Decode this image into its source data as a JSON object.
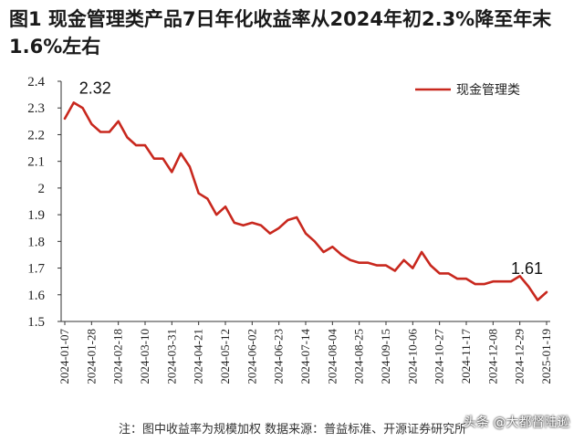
{
  "title": "图1  现金管理类产品7日年化收益率从2024年初2.3%降至年末1.6%左右",
  "note": "注：图中收益率为规模加权    数据来源：普益标准、开源证券研究所",
  "watermark": "头条 @大都督陆逊",
  "colors": {
    "series": "#c8281e"
  },
  "chart_data": {
    "type": "line",
    "ylim": [
      1.5,
      2.4
    ],
    "yticks": [
      "1.5",
      "1.6",
      "1.7",
      "1.8",
      "1.9",
      "2",
      "2.1",
      "2.2",
      "2.3",
      "2.4"
    ],
    "grid": false,
    "legend_position": "top-right",
    "xticks": [
      "2024-01-07",
      "2024-01-28",
      "2024-02-18",
      "2024-03-10",
      "2024-03-31",
      "2024-04-21",
      "2024-05-12",
      "2024-06-02",
      "2024-06-23",
      "2024-07-14",
      "2024-08-04",
      "2024-08-25",
      "2024-09-15",
      "2024-10-06",
      "2024-10-27",
      "2024-11-17",
      "2024-12-08",
      "2024-12-29",
      "2025-01-19"
    ],
    "annotations": [
      {
        "text": "2.32",
        "x": "2024-01-14",
        "y": 2.32
      },
      {
        "text": "1.61",
        "x": "2025-01-19",
        "y": 1.61
      }
    ],
    "series": [
      {
        "name": "现金管理类",
        "x": [
          "2024-01-07",
          "2024-01-14",
          "2024-01-21",
          "2024-01-28",
          "2024-02-04",
          "2024-02-11",
          "2024-02-18",
          "2024-02-25",
          "2024-03-03",
          "2024-03-10",
          "2024-03-17",
          "2024-03-24",
          "2024-03-31",
          "2024-04-07",
          "2024-04-14",
          "2024-04-21",
          "2024-04-28",
          "2024-05-05",
          "2024-05-12",
          "2024-05-19",
          "2024-05-26",
          "2024-06-02",
          "2024-06-09",
          "2024-06-16",
          "2024-06-23",
          "2024-06-30",
          "2024-07-07",
          "2024-07-14",
          "2024-07-21",
          "2024-07-28",
          "2024-08-04",
          "2024-08-11",
          "2024-08-18",
          "2024-08-25",
          "2024-09-01",
          "2024-09-08",
          "2024-09-15",
          "2024-09-22",
          "2024-09-29",
          "2024-10-06",
          "2024-10-13",
          "2024-10-20",
          "2024-10-27",
          "2024-11-03",
          "2024-11-10",
          "2024-11-17",
          "2024-11-24",
          "2024-12-01",
          "2024-12-08",
          "2024-12-15",
          "2024-12-22",
          "2024-12-29",
          "2025-01-05",
          "2025-01-12",
          "2025-01-19"
        ],
        "values": [
          2.26,
          2.32,
          2.3,
          2.24,
          2.21,
          2.21,
          2.25,
          2.19,
          2.16,
          2.16,
          2.11,
          2.11,
          2.06,
          2.13,
          2.08,
          1.98,
          1.96,
          1.9,
          1.93,
          1.87,
          1.86,
          1.87,
          1.86,
          1.83,
          1.85,
          1.88,
          1.89,
          1.83,
          1.8,
          1.76,
          1.78,
          1.75,
          1.73,
          1.72,
          1.72,
          1.71,
          1.71,
          1.69,
          1.73,
          1.7,
          1.76,
          1.71,
          1.68,
          1.68,
          1.66,
          1.66,
          1.64,
          1.64,
          1.65,
          1.65,
          1.65,
          1.67,
          1.63,
          1.58,
          1.61
        ]
      }
    ]
  }
}
